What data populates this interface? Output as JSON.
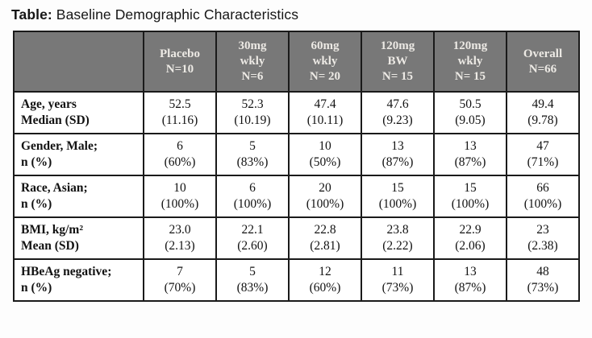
{
  "title": {
    "prefix": "Table:",
    "text": " Baseline Demographic Characteristics"
  },
  "table": {
    "header": {
      "row_label": "",
      "columns": [
        "Placebo\nN=10",
        "30mg\nwkly\nN=6",
        "60mg\nwkly\nN= 20",
        "120mg\nBW\nN= 15",
        "120mg\nwkly\nN= 15",
        "Overall\nN=66"
      ]
    },
    "rows": [
      {
        "label": "Age, years\nMedian (SD)",
        "values": [
          "52.5\n(11.16)",
          "52.3\n(10.19)",
          "47.4\n(10.11)",
          "47.6\n(9.23)",
          "50.5\n(9.05)",
          "49.4\n(9.78)"
        ]
      },
      {
        "label": "Gender, Male;\nn (%)",
        "values": [
          "6\n(60%)",
          "5\n(83%)",
          "10\n(50%)",
          "13\n(87%)",
          "13\n(87%)",
          "47\n(71%)"
        ]
      },
      {
        "label": "Race, Asian;\nn (%)",
        "values": [
          "10\n(100%)",
          "6\n(100%)",
          "20\n(100%)",
          "15\n(100%)",
          "15\n(100%)",
          "66\n(100%)"
        ]
      },
      {
        "label": "BMI, kg/m²\nMean (SD)",
        "values": [
          "23.0\n(2.13)",
          "22.1\n(2.60)",
          "22.8\n(2.81)",
          "23.8\n(2.22)",
          "22.9\n(2.06)",
          "23\n(2.38)"
        ]
      },
      {
        "label": "HBeAg negative;\nn (%)",
        "values": [
          "7\n(70%)",
          "5\n(83%)",
          "12\n(60%)",
          "11\n(73%)",
          "13\n(87%)",
          "48\n(73%)"
        ]
      }
    ]
  },
  "colors": {
    "header_bg": "#787878",
    "header_text": "#edeae5",
    "border": "#1a1a1a",
    "body_bg": "#ffffff",
    "body_text": "#121212"
  }
}
